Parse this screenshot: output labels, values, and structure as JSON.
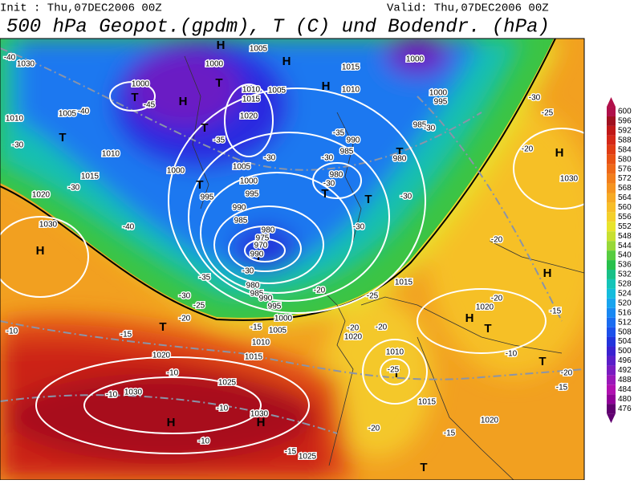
{
  "header": {
    "init": "Init : Thu,07DEC2006 00Z",
    "valid": "Valid: Thu,07DEC2006 00Z",
    "title": "500 hPa Geopot.(gpdm), T (C) und Bodendr. (hPa)"
  },
  "colorbar": {
    "values": [
      600,
      596,
      592,
      588,
      584,
      580,
      576,
      572,
      568,
      564,
      560,
      556,
      552,
      548,
      544,
      540,
      536,
      532,
      528,
      524,
      520,
      516,
      512,
      508,
      504,
      500,
      496,
      492,
      488,
      484,
      480,
      476
    ],
    "colors": [
      "#b0104a",
      "#a01020",
      "#c01818",
      "#d42818",
      "#e03c14",
      "#e85214",
      "#ee6818",
      "#f27e1c",
      "#f59420",
      "#f6aa24",
      "#f7be28",
      "#f4d02a",
      "#e8e42c",
      "#c8e030",
      "#98d838",
      "#58cc40",
      "#28c04c",
      "#18c088",
      "#14c4b8",
      "#14bcdc",
      "#18a4ee",
      "#1888f2",
      "#1a6cf0",
      "#1c50ea",
      "#2234dc",
      "#3a22d0",
      "#5a1ec8",
      "#7a1cc0",
      "#9a18b8",
      "#b010b0",
      "#900098",
      "#600070"
    ]
  },
  "map_labels": [
    "H",
    "H",
    "H",
    "H",
    "H",
    "H",
    "H",
    "H",
    "H",
    "H",
    "T",
    "T",
    "T",
    "T",
    "T",
    "T",
    "T",
    "T",
    "T",
    "T",
    "T",
    "T",
    "T",
    "T",
    "1030",
    "1000",
    "1010",
    "1005",
    "1010",
    "1015",
    "1020",
    "1030",
    "1000",
    "995",
    "1000",
    "1005",
    "1010",
    "1015",
    "1020",
    "1005",
    "1005",
    "1000",
    "995",
    "990",
    "985",
    "980",
    "975",
    "970",
    "990",
    "980",
    "985",
    "990",
    "995",
    "1000",
    "1005",
    "1010",
    "1015",
    "1020",
    "1025",
    "1030",
    "1030",
    "1025",
    "1015",
    "1010",
    "1000",
    "1000",
    "995",
    "985",
    "990",
    "985",
    "980",
    "980",
    "1015",
    "1020",
    "1010",
    "1015",
    "1020",
    "1020",
    "1030",
    "-40",
    "-45",
    "-40",
    "-30",
    "-30",
    "-40",
    "-35",
    "-30",
    "-25",
    "-20",
    "-15",
    "-10",
    "-10",
    "-10",
    "-10",
    "-10",
    "-15",
    "-30",
    "-30",
    "-30",
    "-30",
    "-35",
    "-35",
    "-30",
    "-30",
    "-30",
    "-20",
    "-25",
    "-20",
    "-20",
    "-15",
    "-25",
    "-20",
    "-15",
    "-20",
    "-20",
    "-25",
    "-30",
    "-20",
    "-15",
    "-20",
    "-10",
    "-15"
  ]
}
